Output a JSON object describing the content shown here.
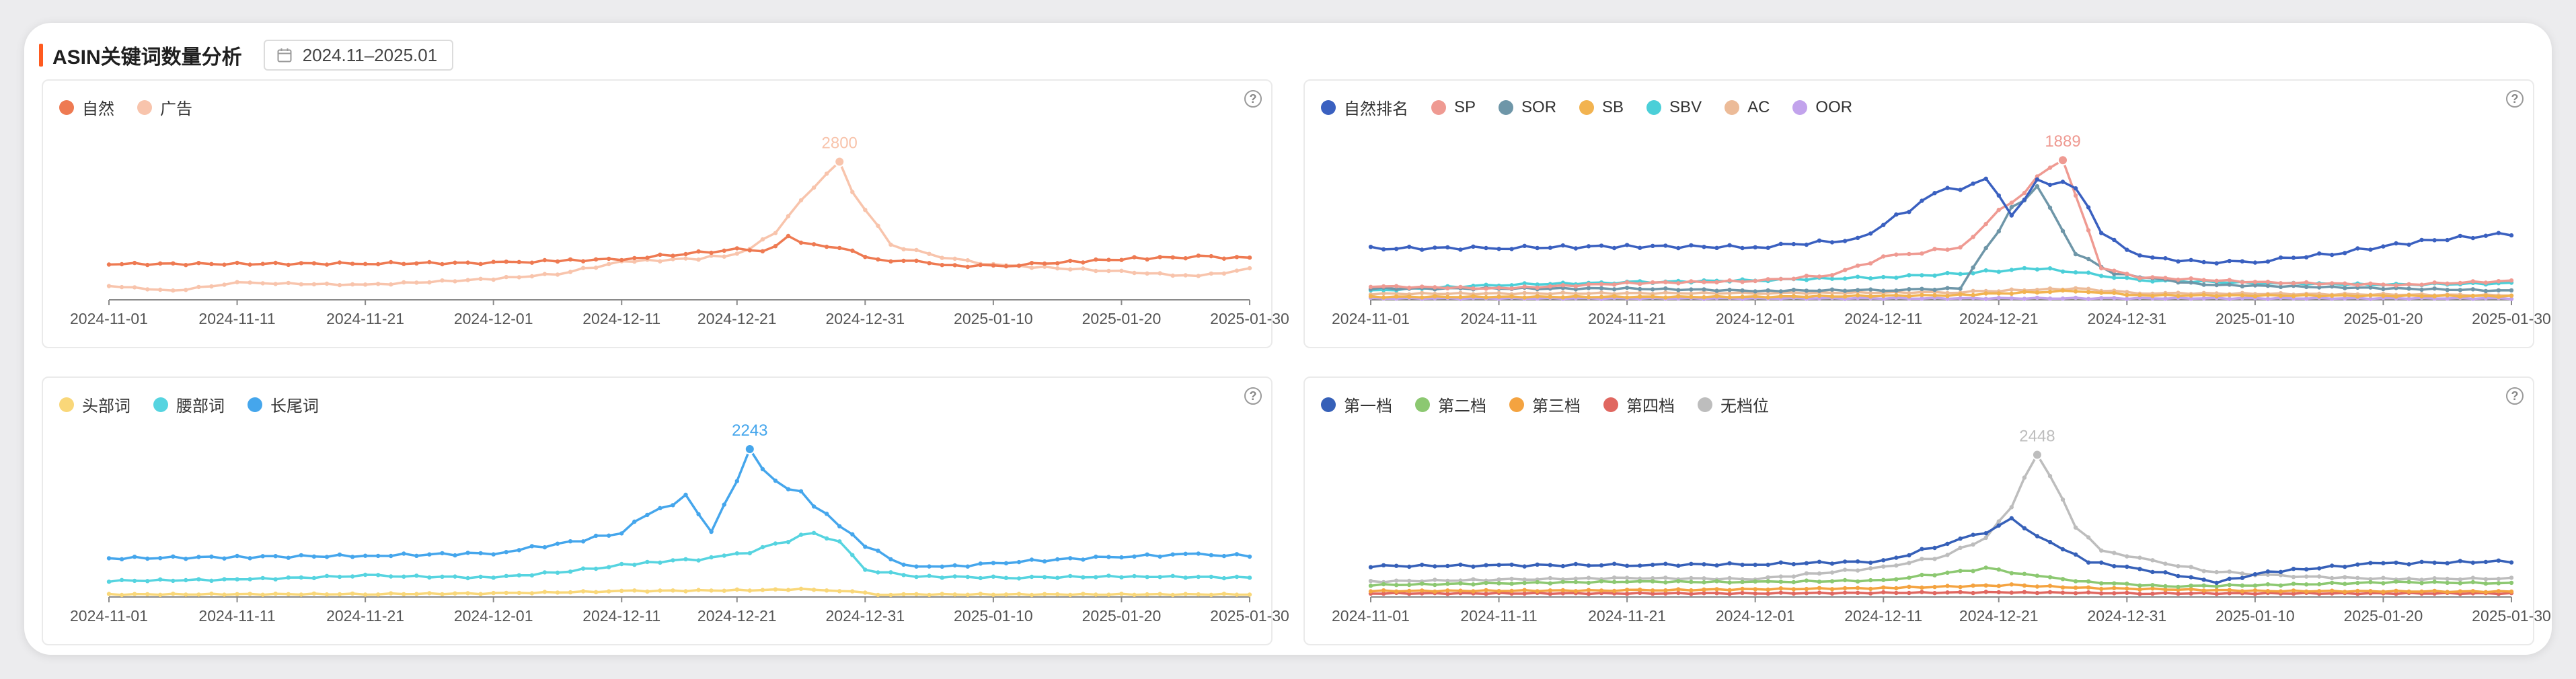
{
  "header": {
    "title": "ASIN关键词数量分析",
    "date_range": "2024.11–2025.01"
  },
  "icons": {
    "calendar": "calendar-icon",
    "help": "question-circle-icon"
  },
  "help_glyph": "?",
  "chart_data": [
    {
      "type": "line",
      "id": "organic-vs-ad",
      "x_ticks": [
        "2024-11-01",
        "2024-11-11",
        "2024-11-21",
        "2024-12-01",
        "2024-12-11",
        "2024-12-21",
        "2024-12-31",
        "2025-01-10",
        "2025-01-20",
        "2025-01-30"
      ],
      "points_per_series": 90,
      "ylim": [
        0,
        3100
      ],
      "peak_label": "2800",
      "series": [
        {
          "name": "自然",
          "color": "#ee7a52",
          "anchors": [
            [
              0,
              720
            ],
            [
              10,
              720
            ],
            [
              20,
              730
            ],
            [
              30,
              740
            ],
            [
              35,
              780
            ],
            [
              40,
              820
            ],
            [
              45,
              920
            ],
            [
              49,
              1010
            ],
            [
              51,
              960
            ],
            [
              53,
              1250
            ],
            [
              55,
              1100
            ],
            [
              57,
              1050
            ],
            [
              60,
              800
            ],
            [
              64,
              760
            ],
            [
              66,
              680
            ],
            [
              70,
              690
            ],
            [
              75,
              760
            ],
            [
              80,
              830
            ],
            [
              85,
              860
            ],
            [
              89,
              840
            ]
          ]
        },
        {
          "name": "广告",
          "color": "#f8c4ac",
          "anchors": [
            [
              0,
              280
            ],
            [
              5,
              180
            ],
            [
              10,
              340
            ],
            [
              20,
              300
            ],
            [
              30,
              420
            ],
            [
              35,
              520
            ],
            [
              40,
              760
            ],
            [
              46,
              830
            ],
            [
              49,
              920
            ],
            [
              52,
              1330
            ],
            [
              55,
              2300
            ],
            [
              57,
              2800
            ],
            [
              58,
              2200
            ],
            [
              61,
              1100
            ],
            [
              65,
              860
            ],
            [
              69,
              700
            ],
            [
              73,
              650
            ],
            [
              78,
              580
            ],
            [
              85,
              470
            ],
            [
              89,
              620
            ]
          ]
        }
      ]
    },
    {
      "type": "line",
      "id": "rank-types",
      "x_ticks": [
        "2024-11-01",
        "2024-11-11",
        "2024-11-21",
        "2024-12-01",
        "2024-12-11",
        "2024-12-21",
        "2024-12-31",
        "2025-01-10",
        "2025-01-20",
        "2025-01-30"
      ],
      "points_per_series": 90,
      "ylim": [
        0,
        2050
      ],
      "peak_label": "1889",
      "series": [
        {
          "name": "自然排名",
          "color": "#3a60c0",
          "anchors": [
            [
              0,
              680
            ],
            [
              10,
              690
            ],
            [
              20,
              710
            ],
            [
              30,
              700
            ],
            [
              38,
              800
            ],
            [
              44,
              1400
            ],
            [
              48,
              1580
            ],
            [
              50,
              1150
            ],
            [
              52,
              1580
            ],
            [
              55,
              1500
            ],
            [
              57,
              900
            ],
            [
              60,
              570
            ],
            [
              65,
              500
            ],
            [
              69,
              510
            ],
            [
              75,
              610
            ],
            [
              82,
              780
            ],
            [
              89,
              880
            ]
          ]
        },
        {
          "name": "SP",
          "color": "#ef9a92",
          "anchors": [
            [
              0,
              180
            ],
            [
              10,
              150
            ],
            [
              20,
              220
            ],
            [
              30,
              250
            ],
            [
              36,
              330
            ],
            [
              40,
              560
            ],
            [
              46,
              700
            ],
            [
              50,
              1320
            ],
            [
              54,
              1889
            ],
            [
              57,
              420
            ],
            [
              60,
              300
            ],
            [
              70,
              230
            ],
            [
              80,
              200
            ],
            [
              89,
              250
            ]
          ]
        },
        {
          "name": "SOR",
          "color": "#6e96a8",
          "anchors": [
            [
              0,
              150
            ],
            [
              20,
              150
            ],
            [
              30,
              120
            ],
            [
              40,
              130
            ],
            [
              46,
              150
            ],
            [
              50,
              1200
            ],
            [
              52,
              1500
            ],
            [
              55,
              620
            ],
            [
              58,
              350
            ],
            [
              65,
              200
            ],
            [
              89,
              120
            ]
          ]
        },
        {
          "name": "SB",
          "color": "#f2b350",
          "anchors": [
            [
              0,
              40
            ],
            [
              30,
              40
            ],
            [
              45,
              60
            ],
            [
              55,
              120
            ],
            [
              60,
              60
            ],
            [
              89,
              50
            ]
          ]
        },
        {
          "name": "SBV",
          "color": "#4bcfd8",
          "anchors": [
            [
              0,
              120
            ],
            [
              10,
              200
            ],
            [
              20,
              230
            ],
            [
              30,
              260
            ],
            [
              40,
              300
            ],
            [
              46,
              350
            ],
            [
              52,
              420
            ],
            [
              57,
              330
            ],
            [
              60,
              260
            ],
            [
              70,
              220
            ],
            [
              80,
              200
            ],
            [
              89,
              220
            ]
          ]
        },
        {
          "name": "AC",
          "color": "#ecbb98",
          "anchors": [
            [
              0,
              80
            ],
            [
              30,
              90
            ],
            [
              45,
              100
            ],
            [
              55,
              150
            ],
            [
              60,
              90
            ],
            [
              89,
              60
            ]
          ]
        },
        {
          "name": "OOR",
          "color": "#c2a3ec",
          "anchors": [
            [
              0,
              20
            ],
            [
              89,
              20
            ]
          ]
        }
      ]
    },
    {
      "type": "line",
      "id": "word-length",
      "x_ticks": [
        "2024-11-01",
        "2024-11-11",
        "2024-11-21",
        "2024-12-01",
        "2024-12-11",
        "2024-12-21",
        "2024-12-31",
        "2025-01-10",
        "2025-01-20",
        "2025-01-30"
      ],
      "points_per_series": 90,
      "ylim": [
        0,
        2400
      ],
      "peak_label": "2243",
      "series": [
        {
          "name": "头部词",
          "color": "#f9d779",
          "anchors": [
            [
              0,
              40
            ],
            [
              20,
              45
            ],
            [
              30,
              55
            ],
            [
              40,
              90
            ],
            [
              52,
              110
            ],
            [
              55,
              120
            ],
            [
              58,
              80
            ],
            [
              60,
              40
            ],
            [
              89,
              40
            ]
          ]
        },
        {
          "name": "腰部词",
          "color": "#56d4e0",
          "anchors": [
            [
              0,
              250
            ],
            [
              10,
              270
            ],
            [
              20,
              330
            ],
            [
              30,
              300
            ],
            [
              36,
              400
            ],
            [
              42,
              540
            ],
            [
              47,
              600
            ],
            [
              50,
              700
            ],
            [
              55,
              1000
            ],
            [
              57,
              860
            ],
            [
              59,
              420
            ],
            [
              63,
              320
            ],
            [
              70,
              300
            ],
            [
              80,
              320
            ],
            [
              89,
              300
            ]
          ]
        },
        {
          "name": "长尾词",
          "color": "#45a6ec",
          "anchors": [
            [
              0,
              600
            ],
            [
              10,
              620
            ],
            [
              20,
              640
            ],
            [
              30,
              680
            ],
            [
              36,
              850
            ],
            [
              40,
              1000
            ],
            [
              42,
              1280
            ],
            [
              45,
              1550
            ],
            [
              47,
              1030
            ],
            [
              50,
              2243
            ],
            [
              52,
              1800
            ],
            [
              54,
              1600
            ],
            [
              57,
              1100
            ],
            [
              59,
              800
            ],
            [
              62,
              500
            ],
            [
              65,
              460
            ],
            [
              70,
              540
            ],
            [
              78,
              620
            ],
            [
              84,
              660
            ],
            [
              89,
              640
            ]
          ]
        }
      ]
    },
    {
      "type": "line",
      "id": "tiers",
      "x_ticks": [
        "2024-11-01",
        "2024-11-11",
        "2024-11-21",
        "2024-12-01",
        "2024-12-11",
        "2024-12-21",
        "2024-12-31",
        "2025-01-10",
        "2025-01-20",
        "2025-01-30"
      ],
      "points_per_series": 90,
      "ylim": [
        0,
        2600
      ],
      "peak_label": "2448",
      "series": [
        {
          "name": "第一档",
          "color": "#3660b8",
          "anchors": [
            [
              0,
              520
            ],
            [
              10,
              530
            ],
            [
              20,
              540
            ],
            [
              30,
              550
            ],
            [
              40,
              600
            ],
            [
              45,
              900
            ],
            [
              48,
              1100
            ],
            [
              50,
              1300
            ],
            [
              53,
              900
            ],
            [
              56,
              600
            ],
            [
              62,
              400
            ],
            [
              66,
              250
            ],
            [
              70,
              420
            ],
            [
              78,
              560
            ],
            [
              89,
              600
            ]
          ]
        },
        {
          "name": "第二档",
          "color": "#8cc871",
          "anchors": [
            [
              0,
              200
            ],
            [
              10,
              230
            ],
            [
              20,
              260
            ],
            [
              30,
              250
            ],
            [
              40,
              280
            ],
            [
              48,
              480
            ],
            [
              52,
              350
            ],
            [
              56,
              250
            ],
            [
              62,
              180
            ],
            [
              70,
              200
            ],
            [
              80,
              250
            ],
            [
              89,
              230
            ]
          ]
        },
        {
          "name": "第三档",
          "color": "#f4a340",
          "anchors": [
            [
              0,
              100
            ],
            [
              20,
              110
            ],
            [
              40,
              150
            ],
            [
              50,
              200
            ],
            [
              56,
              150
            ],
            [
              70,
              100
            ],
            [
              89,
              90
            ]
          ]
        },
        {
          "name": "第四档",
          "color": "#e06760",
          "anchors": [
            [
              0,
              60
            ],
            [
              30,
              60
            ],
            [
              50,
              80
            ],
            [
              60,
              60
            ],
            [
              89,
              60
            ]
          ]
        },
        {
          "name": "无档位",
          "color": "#bdbdbd",
          "anchors": [
            [
              0,
              260
            ],
            [
              10,
              290
            ],
            [
              20,
              320
            ],
            [
              30,
              300
            ],
            [
              40,
              500
            ],
            [
              45,
              700
            ],
            [
              48,
              1000
            ],
            [
              50,
              1500
            ],
            [
              52,
              2448
            ],
            [
              55,
              1200
            ],
            [
              57,
              800
            ],
            [
              60,
              640
            ],
            [
              65,
              450
            ],
            [
              70,
              360
            ],
            [
              80,
              300
            ],
            [
              89,
              310
            ]
          ]
        }
      ]
    }
  ]
}
